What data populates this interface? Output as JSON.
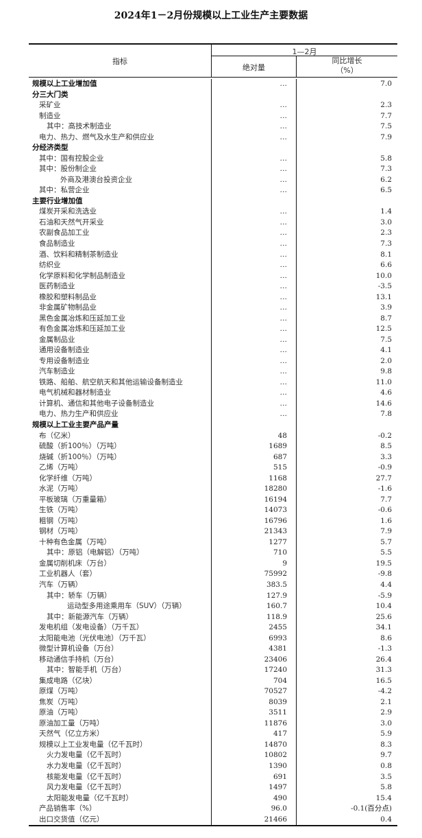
{
  "title": "2024年1－2月份规模以上工业生产主要数据",
  "header": {
    "indicator": "指标",
    "period": "1—2月",
    "absolute": "绝对量",
    "yoy_line1": "同比增长",
    "yoy_line2": "（%）"
  },
  "rows": [
    {
      "label": "规模以上工业增加值",
      "level": 0,
      "bold": true,
      "abs": "…",
      "yoy": "7.0"
    },
    {
      "label": "分三大门类",
      "level": 0,
      "bold": true,
      "abs": "",
      "yoy": ""
    },
    {
      "label": "采矿业",
      "level": 1,
      "abs": "…",
      "yoy": "2.3"
    },
    {
      "label": "制造业",
      "level": 1,
      "abs": "…",
      "yoy": "7.7"
    },
    {
      "label": "其中：高技术制造业",
      "level": 2,
      "abs": "…",
      "yoy": "7.5"
    },
    {
      "label": "电力、热力、燃气及水生产和供应业",
      "level": 1,
      "abs": "…",
      "yoy": "7.9"
    },
    {
      "label": "分经济类型",
      "level": 0,
      "bold": true,
      "abs": "",
      "yoy": ""
    },
    {
      "label": "其中：国有控股企业",
      "level": 1,
      "abs": "…",
      "yoy": "5.8"
    },
    {
      "label": "其中：股份制企业",
      "level": 1,
      "abs": "…",
      "yoy": "7.3"
    },
    {
      "label": "外商及港澳台投资企业",
      "level": 3,
      "abs": "…",
      "yoy": "6.2"
    },
    {
      "label": "其中：私营企业",
      "level": 1,
      "abs": "…",
      "yoy": "6.5"
    },
    {
      "label": "主要行业增加值",
      "level": 0,
      "bold": true,
      "abs": "",
      "yoy": ""
    },
    {
      "label": "煤炭开采和洗选业",
      "level": 1,
      "abs": "…",
      "yoy": "1.4"
    },
    {
      "label": "石油和天然气开采业",
      "level": 1,
      "abs": "…",
      "yoy": "3.0"
    },
    {
      "label": "农副食品加工业",
      "level": 1,
      "abs": "…",
      "yoy": "2.3"
    },
    {
      "label": "食品制造业",
      "level": 1,
      "abs": "…",
      "yoy": "7.3"
    },
    {
      "label": "酒、饮料和精制茶制造业",
      "level": 1,
      "abs": "…",
      "yoy": "8.1"
    },
    {
      "label": "纺织业",
      "level": 1,
      "abs": "…",
      "yoy": "6.6"
    },
    {
      "label": "化学原料和化学制品制造业",
      "level": 1,
      "abs": "…",
      "yoy": "10.0"
    },
    {
      "label": "医药制造业",
      "level": 1,
      "abs": "…",
      "yoy": "-3.5"
    },
    {
      "label": "橡胶和塑料制品业",
      "level": 1,
      "abs": "…",
      "yoy": "13.1"
    },
    {
      "label": "非金属矿物制品业",
      "level": 1,
      "abs": "…",
      "yoy": "3.9"
    },
    {
      "label": "黑色金属冶炼和压延加工业",
      "level": 1,
      "abs": "…",
      "yoy": "8.7"
    },
    {
      "label": "有色金属冶炼和压延加工业",
      "level": 1,
      "abs": "…",
      "yoy": "12.5"
    },
    {
      "label": "金属制品业",
      "level": 1,
      "abs": "…",
      "yoy": "7.5"
    },
    {
      "label": "通用设备制造业",
      "level": 1,
      "abs": "…",
      "yoy": "4.1"
    },
    {
      "label": "专用设备制造业",
      "level": 1,
      "abs": "…",
      "yoy": "2.0"
    },
    {
      "label": "汽车制造业",
      "level": 1,
      "abs": "…",
      "yoy": "9.8"
    },
    {
      "label": "铁路、船舶、航空航天和其他运输设备制造业",
      "level": 1,
      "abs": "…",
      "yoy": "11.0"
    },
    {
      "label": "电气机械和器材制造业",
      "level": 1,
      "abs": "…",
      "yoy": "4.6"
    },
    {
      "label": "计算机、通信和其他电子设备制造业",
      "level": 1,
      "abs": "…",
      "yoy": "14.6"
    },
    {
      "label": "电力、热力生产和供应业",
      "level": 1,
      "abs": "…",
      "yoy": "7.8"
    },
    {
      "label": "规模以上工业主要产品产量",
      "level": 0,
      "bold": true,
      "abs": "",
      "yoy": ""
    },
    {
      "label": "布（亿米）",
      "level": 1,
      "abs": "48",
      "yoy": "-0.2"
    },
    {
      "label": "硫酸（折100％）（万吨）",
      "level": 1,
      "abs": "1689",
      "yoy": "8.5"
    },
    {
      "label": "烧碱（折100％）（万吨）",
      "level": 1,
      "abs": "687",
      "yoy": "3.3"
    },
    {
      "label": "乙烯（万吨）",
      "level": 1,
      "abs": "515",
      "yoy": "-0.9"
    },
    {
      "label": "化学纤维（万吨）",
      "level": 1,
      "abs": "1168",
      "yoy": "27.7"
    },
    {
      "label": "水泥（万吨）",
      "level": 1,
      "abs": "18280",
      "yoy": "-1.6"
    },
    {
      "label": "平板玻璃（万重量箱）",
      "level": 1,
      "abs": "16194",
      "yoy": "7.7"
    },
    {
      "label": "生铁（万吨）",
      "level": 1,
      "abs": "14073",
      "yoy": "-0.6"
    },
    {
      "label": "粗钢（万吨）",
      "level": 1,
      "abs": "16796",
      "yoy": "1.6"
    },
    {
      "label": "钢材（万吨）",
      "level": 1,
      "abs": "21343",
      "yoy": "7.9"
    },
    {
      "label": "十种有色金属（万吨）",
      "level": 1,
      "abs": "1277",
      "yoy": "5.7"
    },
    {
      "label": "其中：原铝（电解铝）（万吨）",
      "level": 2,
      "abs": "710",
      "yoy": "5.5"
    },
    {
      "label": "金属切削机床（万台）",
      "level": 1,
      "abs": "9",
      "yoy": "19.5"
    },
    {
      "label": "工业机器人（套）",
      "level": 1,
      "abs": "75992",
      "yoy": "-9.8"
    },
    {
      "label": "汽车（万辆）",
      "level": 1,
      "abs": "383.5",
      "yoy": "4.4"
    },
    {
      "label": "其中：轿车（万辆）",
      "level": 2,
      "abs": "127.9",
      "yoy": "-5.9"
    },
    {
      "label": "运动型多用途乘用车（SUV）（万辆）",
      "level": 4,
      "abs": "160.7",
      "yoy": "10.4"
    },
    {
      "label": "其中：新能源汽车（万辆）",
      "level": 2,
      "abs": "118.9",
      "yoy": "25.6"
    },
    {
      "label": "发电机组（发电设备）（万千瓦）",
      "level": 1,
      "abs": "2455",
      "yoy": "34.1"
    },
    {
      "label": "太阳能电池（光伏电池）（万千瓦）",
      "level": 1,
      "abs": "6993",
      "yoy": "8.6"
    },
    {
      "label": "微型计算机设备（万台）",
      "level": 1,
      "abs": "4381",
      "yoy": "-1.3"
    },
    {
      "label": "移动通信手持机（万台）",
      "level": 1,
      "abs": "23406",
      "yoy": "26.4"
    },
    {
      "label": "其中：智能手机（万台）",
      "level": 2,
      "abs": "17240",
      "yoy": "31.3"
    },
    {
      "label": "集成电路（亿块）",
      "level": 1,
      "abs": "704",
      "yoy": "16.5"
    },
    {
      "label": "原煤（万吨）",
      "level": 1,
      "abs": "70527",
      "yoy": "-4.2"
    },
    {
      "label": "焦炭（万吨）",
      "level": 1,
      "abs": "8039",
      "yoy": "2.1"
    },
    {
      "label": "原油（万吨）",
      "level": 1,
      "abs": "3511",
      "yoy": "2.9"
    },
    {
      "label": "原油加工量（万吨）",
      "level": 1,
      "abs": "11876",
      "yoy": "3.0"
    },
    {
      "label": "天然气（亿立方米）",
      "level": 1,
      "abs": "417",
      "yoy": "5.9"
    },
    {
      "label": "规模以上工业发电量（亿千瓦时）",
      "level": 1,
      "abs": "14870",
      "yoy": "8.3"
    },
    {
      "label": "火力发电量（亿千瓦时）",
      "level": 2,
      "abs": "10802",
      "yoy": "9.7"
    },
    {
      "label": "水力发电量（亿千瓦时）",
      "level": 2,
      "abs": "1390",
      "yoy": "0.8"
    },
    {
      "label": "核能发电量（亿千瓦时）",
      "level": 2,
      "abs": "691",
      "yoy": "3.5"
    },
    {
      "label": "风力发电量（亿千瓦时）",
      "level": 2,
      "abs": "1497",
      "yoy": "5.8"
    },
    {
      "label": "太阳能发电量（亿千瓦时）",
      "level": 2,
      "abs": "490",
      "yoy": "15.4"
    },
    {
      "label": "产品销售率（%）",
      "level": 1,
      "abs": "96.0",
      "yoy": "-0.1(百分点)"
    },
    {
      "label": "出口交货值（亿元）",
      "level": 1,
      "abs": "21466",
      "yoy": "0.4"
    }
  ]
}
